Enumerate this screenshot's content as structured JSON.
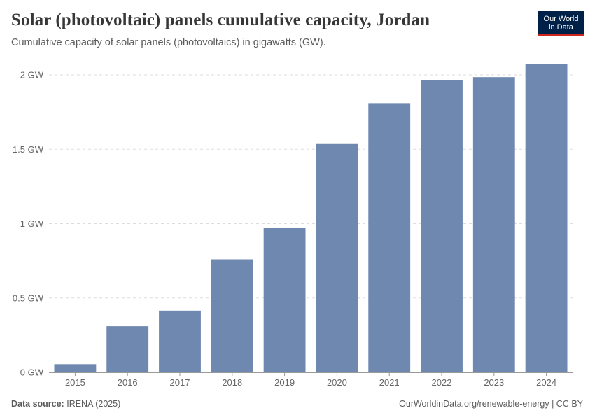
{
  "header": {
    "title": "Solar (photovoltaic) panels cumulative capacity, Jordan",
    "subtitle": "Cumulative capacity of solar panels (photovoltaics) in gigawatts (GW)."
  },
  "logo": {
    "line1": "Our World",
    "line2": "in Data"
  },
  "footer": {
    "source_label": "Data source:",
    "source_value": "IRENA (2025)",
    "right_text": "OurWorldinData.org/renewable-energy | CC BY"
  },
  "colors": {
    "bar": "#6f88b0",
    "grid": "#dddddd",
    "axis": "#999999"
  },
  "chart_data": {
    "type": "bar",
    "title": "Solar (photovoltaic) panels cumulative capacity, Jordan",
    "xlabel": "",
    "ylabel": "",
    "unit": "GW",
    "categories": [
      "2015",
      "2016",
      "2017",
      "2018",
      "2019",
      "2020",
      "2021",
      "2022",
      "2023",
      "2024"
    ],
    "values": [
      0.055,
      0.31,
      0.415,
      0.76,
      0.97,
      1.54,
      1.81,
      1.965,
      1.985,
      2.075
    ],
    "ylim": [
      0,
      2
    ],
    "yticks": [
      0,
      0.5,
      1,
      1.5,
      2
    ],
    "ytick_labels": [
      "0 GW",
      "0.5 GW",
      "1 GW",
      "1.5 GW",
      "2 GW"
    ],
    "grid": true,
    "legend": "none"
  }
}
